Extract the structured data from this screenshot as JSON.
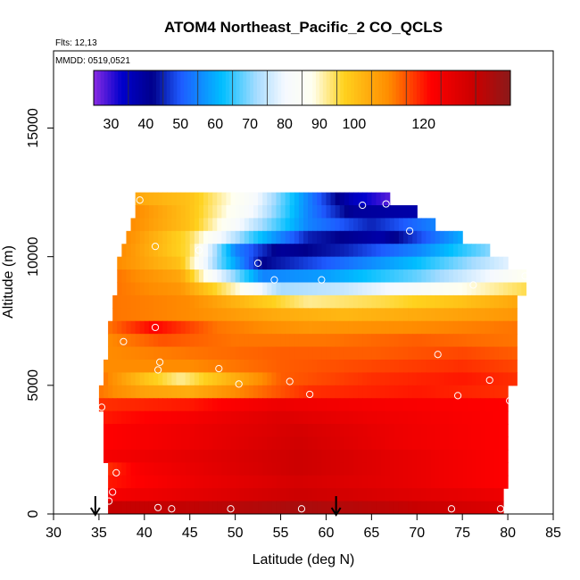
{
  "chart_data": {
    "type": "heatmap",
    "title": "ATOM4 Northeast_Pacific_2 CO_QCLS",
    "flights_label": "Flts: 12,13",
    "dates_label": "MMDD: 0519,0521",
    "xlabel": "Latitude (deg N)",
    "ylabel": "Altitude (m)",
    "xlim": [
      30,
      85
    ],
    "ylim": [
      0,
      18000
    ],
    "xticks": [
      "30",
      "35",
      "40",
      "45",
      "50",
      "55",
      "60",
      "65",
      "70",
      "75",
      "80",
      "85"
    ],
    "yticks": [
      "0",
      "5000",
      "10000",
      "15000"
    ],
    "colorbar": {
      "range": [
        25,
        145
      ],
      "tick_labels": [
        "30",
        "40",
        "50",
        "60",
        "70",
        "80",
        "90",
        "100",
        "120"
      ],
      "tick_values": [
        30,
        40,
        50,
        60,
        70,
        80,
        90,
        100,
        120
      ],
      "stops": [
        {
          "v": 25,
          "color": "#8a2be2"
        },
        {
          "v": 33,
          "color": "#0000cd"
        },
        {
          "v": 42,
          "color": "#00008b"
        },
        {
          "v": 50,
          "color": "#1e5aff"
        },
        {
          "v": 62,
          "color": "#00bfff"
        },
        {
          "v": 72,
          "color": "#a8dcff"
        },
        {
          "v": 80,
          "color": "#f5f9ff"
        },
        {
          "v": 88,
          "color": "#fffff0"
        },
        {
          "v": 97,
          "color": "#ffd21e"
        },
        {
          "v": 110,
          "color": "#ff8c00"
        },
        {
          "v": 122,
          "color": "#ff0000"
        },
        {
          "v": 135,
          "color": "#c80000"
        },
        {
          "v": 145,
          "color": "#8b1a1a"
        }
      ]
    },
    "curtain_bands": [
      {
        "alt_min": 12000,
        "alt_max": 12500,
        "lat_min": 39,
        "lat_max": 67,
        "values": [
          [
            39,
            105
          ],
          [
            45,
            100
          ],
          [
            52,
            82
          ],
          [
            58,
            55
          ],
          [
            63,
            35
          ],
          [
            67,
            28
          ]
        ]
      },
      {
        "alt_min": 11500,
        "alt_max": 12000,
        "lat_min": 39,
        "lat_max": 70,
        "values": [
          [
            39,
            110
          ],
          [
            45,
            100
          ],
          [
            52,
            80
          ],
          [
            58,
            55
          ],
          [
            63,
            40
          ],
          [
            70,
            38
          ]
        ]
      },
      {
        "alt_min": 11000,
        "alt_max": 11500,
        "lat_min": 38.5,
        "lat_max": 72,
        "values": [
          [
            38.5,
            110
          ],
          [
            45,
            100
          ],
          [
            52,
            75
          ],
          [
            58,
            55
          ],
          [
            65,
            45
          ],
          [
            72,
            55
          ]
        ]
      },
      {
        "alt_min": 10500,
        "alt_max": 11000,
        "lat_min": 38,
        "lat_max": 75,
        "values": [
          [
            38,
            110
          ],
          [
            45,
            95
          ],
          [
            52,
            65
          ],
          [
            58,
            45
          ],
          [
            66,
            38
          ],
          [
            75,
            60
          ]
        ]
      },
      {
        "alt_min": 10000,
        "alt_max": 10500,
        "lat_min": 37.5,
        "lat_max": 78,
        "values": [
          [
            37.5,
            110
          ],
          [
            45,
            95
          ],
          [
            50,
            55
          ],
          [
            55,
            40
          ],
          [
            62,
            45
          ],
          [
            70,
            55
          ],
          [
            78,
            70
          ]
        ]
      },
      {
        "alt_min": 9500,
        "alt_max": 10000,
        "lat_min": 37,
        "lat_max": 80,
        "values": [
          [
            37,
            110
          ],
          [
            44,
            100
          ],
          [
            48,
            70
          ],
          [
            53,
            42
          ],
          [
            60,
            50
          ],
          [
            70,
            62
          ],
          [
            80,
            78
          ]
        ]
      },
      {
        "alt_min": 9000,
        "alt_max": 9500,
        "lat_min": 37,
        "lat_max": 82,
        "values": [
          [
            37,
            112
          ],
          [
            44,
            105
          ],
          [
            48,
            80
          ],
          [
            53,
            55
          ],
          [
            60,
            58
          ],
          [
            70,
            68
          ],
          [
            78,
            80
          ],
          [
            82,
            88
          ]
        ]
      },
      {
        "alt_min": 8500,
        "alt_max": 9000,
        "lat_min": 37,
        "lat_max": 82,
        "values": [
          [
            37,
            112
          ],
          [
            44,
            108
          ],
          [
            50,
            90
          ],
          [
            55,
            72
          ],
          [
            62,
            75
          ],
          [
            72,
            85
          ],
          [
            82,
            95
          ]
        ]
      },
      {
        "alt_min": 8000,
        "alt_max": 8500,
        "lat_min": 36.5,
        "lat_max": 81,
        "values": [
          [
            36.5,
            112
          ],
          [
            45,
            110
          ],
          [
            52,
            100
          ],
          [
            58,
            92
          ],
          [
            66,
            95
          ],
          [
            75,
            100
          ],
          [
            81,
            105
          ]
        ]
      },
      {
        "alt_min": 7500,
        "alt_max": 8000,
        "lat_min": 36.5,
        "lat_max": 81,
        "values": [
          [
            36.5,
            112
          ],
          [
            45,
            110
          ],
          [
            55,
            104
          ],
          [
            62,
            102
          ],
          [
            72,
            105
          ],
          [
            81,
            108
          ]
        ]
      },
      {
        "alt_min": 7000,
        "alt_max": 7500,
        "lat_min": 36,
        "lat_max": 81,
        "values": [
          [
            36,
            112
          ],
          [
            41,
            122
          ],
          [
            48,
            112
          ],
          [
            58,
            108
          ],
          [
            70,
            110
          ],
          [
            81,
            112
          ]
        ]
      },
      {
        "alt_min": 6500,
        "alt_max": 7000,
        "lat_min": 36,
        "lat_max": 81,
        "values": [
          [
            36,
            110
          ],
          [
            42,
            115
          ],
          [
            50,
            112
          ],
          [
            60,
            112
          ],
          [
            70,
            114
          ],
          [
            81,
            112
          ]
        ]
      },
      {
        "alt_min": 6000,
        "alt_max": 6500,
        "lat_min": 36,
        "lat_max": 81,
        "values": [
          [
            36,
            110
          ],
          [
            45,
            112
          ],
          [
            55,
            114
          ],
          [
            65,
            114
          ],
          [
            75,
            116
          ],
          [
            81,
            114
          ]
        ]
      },
      {
        "alt_min": 5500,
        "alt_max": 6000,
        "lat_min": 35.5,
        "lat_max": 81,
        "values": [
          [
            35.5,
            110
          ],
          [
            45,
            110
          ],
          [
            55,
            114
          ],
          [
            65,
            116
          ],
          [
            75,
            118
          ],
          [
            81,
            116
          ]
        ]
      },
      {
        "alt_min": 5000,
        "alt_max": 5500,
        "lat_min": 35.5,
        "lat_max": 81,
        "values": [
          [
            35.5,
            112
          ],
          [
            40,
            100
          ],
          [
            44,
            92
          ],
          [
            48,
            100
          ],
          [
            55,
            114
          ],
          [
            65,
            118
          ],
          [
            75,
            120
          ],
          [
            81,
            118
          ]
        ]
      },
      {
        "alt_min": 4500,
        "alt_max": 5000,
        "lat_min": 35,
        "lat_max": 80,
        "values": [
          [
            35,
            112
          ],
          [
            40,
            106
          ],
          [
            45,
            104
          ],
          [
            50,
            110
          ],
          [
            58,
            118
          ],
          [
            70,
            120
          ],
          [
            80,
            118
          ]
        ]
      },
      {
        "alt_min": 4000,
        "alt_max": 4500,
        "lat_min": 35,
        "lat_max": 80,
        "values": [
          [
            35,
            118
          ],
          [
            45,
            120
          ],
          [
            55,
            126
          ],
          [
            65,
            124
          ],
          [
            80,
            122
          ]
        ]
      },
      {
        "alt_min": 3500,
        "alt_max": 4000,
        "lat_min": 35.5,
        "lat_max": 80,
        "values": [
          [
            35.5,
            120
          ],
          [
            45,
            124
          ],
          [
            55,
            130
          ],
          [
            65,
            126
          ],
          [
            80,
            122
          ]
        ]
      },
      {
        "alt_min": 3000,
        "alt_max": 3500,
        "lat_min": 35.5,
        "lat_max": 80,
        "values": [
          [
            35.5,
            122
          ],
          [
            45,
            126
          ],
          [
            57,
            132
          ],
          [
            68,
            126
          ],
          [
            80,
            122
          ]
        ]
      },
      {
        "alt_min": 2500,
        "alt_max": 3000,
        "lat_min": 35.5,
        "lat_max": 80,
        "values": [
          [
            35.5,
            122
          ],
          [
            45,
            126
          ],
          [
            57,
            133
          ],
          [
            68,
            126
          ],
          [
            80,
            122
          ]
        ]
      },
      {
        "alt_min": 2000,
        "alt_max": 2500,
        "lat_min": 35.5,
        "lat_max": 80,
        "values": [
          [
            35.5,
            124
          ],
          [
            45,
            128
          ],
          [
            57,
            134
          ],
          [
            68,
            128
          ],
          [
            80,
            122
          ]
        ]
      },
      {
        "alt_min": 1500,
        "alt_max": 2000,
        "lat_min": 36,
        "lat_max": 80,
        "values": [
          [
            36,
            118
          ],
          [
            40,
            124
          ],
          [
            50,
            130
          ],
          [
            57,
            134
          ],
          [
            68,
            128
          ],
          [
            80,
            122
          ]
        ]
      },
      {
        "alt_min": 1000,
        "alt_max": 1500,
        "lat_min": 36,
        "lat_max": 80,
        "values": [
          [
            36,
            120
          ],
          [
            45,
            126
          ],
          [
            57,
            132
          ],
          [
            68,
            128
          ],
          [
            80,
            122
          ]
        ]
      },
      {
        "alt_min": 500,
        "alt_max": 1000,
        "lat_min": 36,
        "lat_max": 79.5,
        "values": [
          [
            36,
            124
          ],
          [
            45,
            128
          ],
          [
            57,
            134
          ],
          [
            68,
            130
          ],
          [
            79.5,
            126
          ]
        ]
      },
      {
        "alt_min": 0,
        "alt_max": 500,
        "lat_min": 36,
        "lat_max": 79.5,
        "values": [
          [
            36,
            135
          ],
          [
            45,
            136
          ],
          [
            57,
            140
          ],
          [
            68,
            136
          ],
          [
            79.5,
            130
          ]
        ]
      }
    ],
    "sample_points": [
      {
        "x": 39.5,
        "y": 12200
      },
      {
        "x": 64,
        "y": 12000
      },
      {
        "x": 66.6,
        "y": 12050
      },
      {
        "x": 69.2,
        "y": 11000
      },
      {
        "x": 41.2,
        "y": 10400
      },
      {
        "x": 46,
        "y": 10250
      },
      {
        "x": 52.5,
        "y": 9750
      },
      {
        "x": 54.3,
        "y": 9100
      },
      {
        "x": 59.5,
        "y": 9100
      },
      {
        "x": 76.2,
        "y": 8900
      },
      {
        "x": 81.9,
        "y": 9250
      },
      {
        "x": 41.2,
        "y": 7250
      },
      {
        "x": 37.7,
        "y": 6700
      },
      {
        "x": 41.7,
        "y": 5900
      },
      {
        "x": 41.5,
        "y": 5600
      },
      {
        "x": 48.2,
        "y": 5650
      },
      {
        "x": 72.3,
        "y": 6200
      },
      {
        "x": 56,
        "y": 5150
      },
      {
        "x": 50.4,
        "y": 5050
      },
      {
        "x": 78,
        "y": 5200
      },
      {
        "x": 58.2,
        "y": 4650
      },
      {
        "x": 74.5,
        "y": 4600
      },
      {
        "x": 80.2,
        "y": 4400
      },
      {
        "x": 35.3,
        "y": 4150
      },
      {
        "x": 36.9,
        "y": 1600
      },
      {
        "x": 36.5,
        "y": 850
      },
      {
        "x": 36.1,
        "y": 500
      },
      {
        "x": 41.5,
        "y": 250
      },
      {
        "x": 43,
        "y": 200
      },
      {
        "x": 49.5,
        "y": 200
      },
      {
        "x": 57.3,
        "y": 200
      },
      {
        "x": 73.8,
        "y": 200
      },
      {
        "x": 79.2,
        "y": 200
      }
    ],
    "arrows_latitude": [
      34.6,
      61.1
    ]
  }
}
